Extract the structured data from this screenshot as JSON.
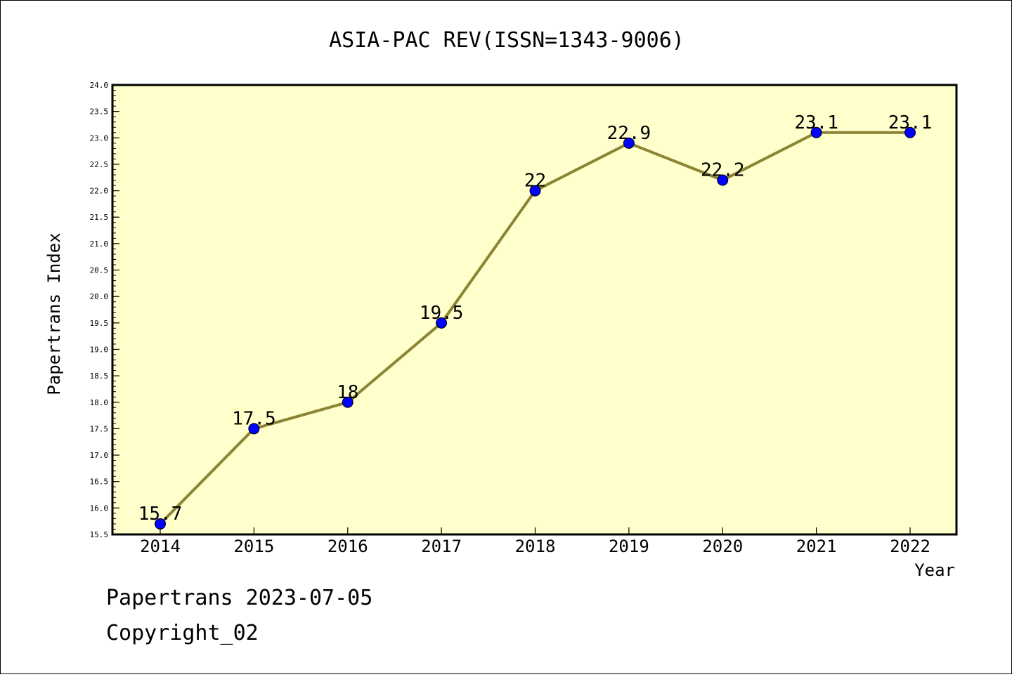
{
  "chart_data": {
    "type": "line",
    "title": "ASIA-PAC REV(ISSN=1343-9006)",
    "xlabel": "Year",
    "ylabel": "Papertrans Index",
    "categories": [
      "2014",
      "2015",
      "2016",
      "2017",
      "2018",
      "2019",
      "2020",
      "2021",
      "2022"
    ],
    "series": [
      {
        "values": [
          15.7,
          17.5,
          18,
          19.5,
          22,
          22.9,
          22.2,
          23.1,
          23.1
        ],
        "data_labels": [
          "15.7",
          "17.5",
          "18",
          "19.5",
          "22",
          "22.9",
          "22.2",
          "23.1",
          "23.1"
        ]
      }
    ],
    "ylim": [
      15.5,
      24.0
    ],
    "y_ticks": [
      "15.5",
      "16.0",
      "16.5",
      "17.0",
      "17.5",
      "18.0",
      "18.5",
      "19.0",
      "19.5",
      "20.0",
      "20.5",
      "21.0",
      "21.5",
      "22.0",
      "22.5",
      "23.0",
      "23.5",
      "24.0"
    ],
    "grid": false,
    "colors": {
      "plot_background": "#ffffcc",
      "line": "#8b8434",
      "marker": "#0000ff"
    }
  },
  "footer": {
    "line1": "Papertrans 2023-07-05",
    "line2": "Copyright_02"
  }
}
